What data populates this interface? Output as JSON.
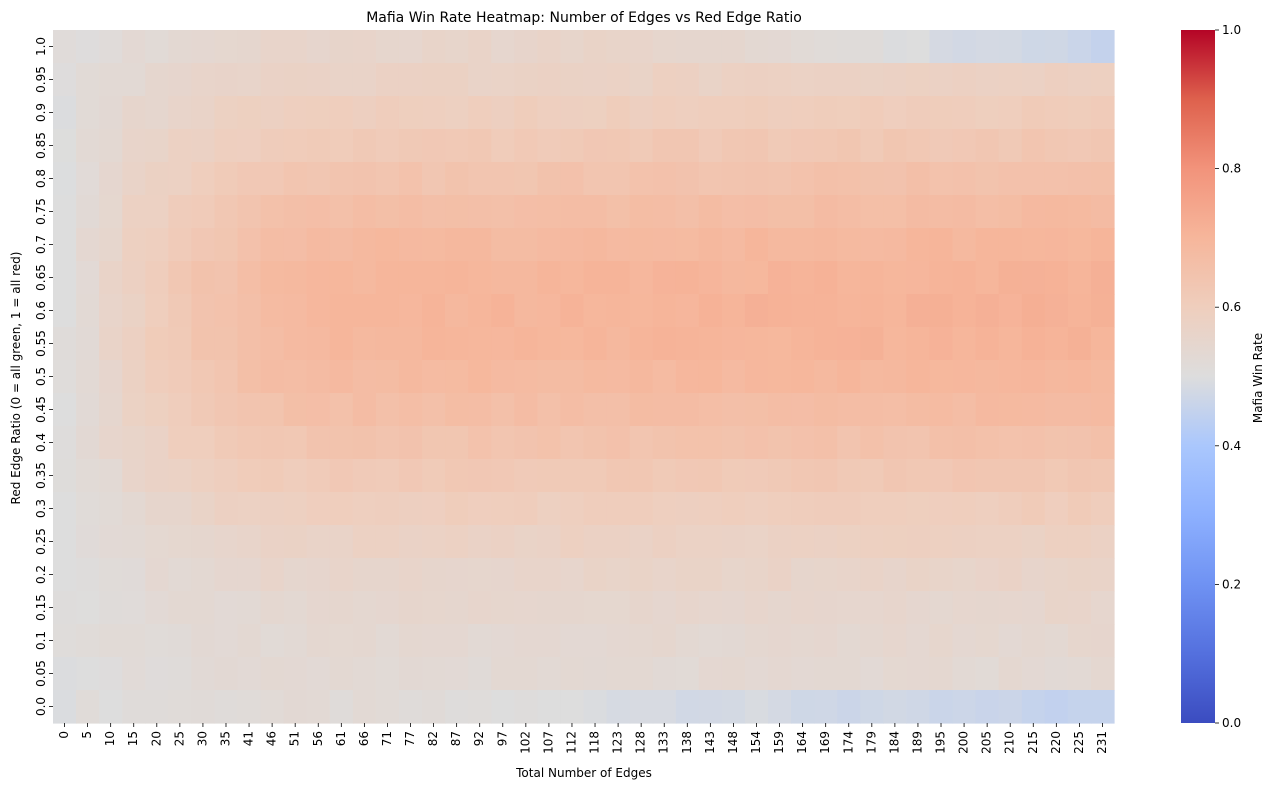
{
  "chart_data": {
    "type": "heatmap",
    "title": "Mafia Win Rate Heatmap: Number of Edges vs Red Edge Ratio",
    "xlabel": "Total Number of Edges",
    "ylabel": "Red Edge Ratio (0 = all green, 1 = all red)",
    "x_tick_labels": [
      "0",
      "5",
      "10",
      "15",
      "20",
      "25",
      "30",
      "35",
      "41",
      "46",
      "51",
      "56",
      "61",
      "66",
      "71",
      "77",
      "82",
      "87",
      "92",
      "97",
      "102",
      "107",
      "112",
      "118",
      "123",
      "128",
      "133",
      "138",
      "143",
      "148",
      "154",
      "159",
      "164",
      "169",
      "174",
      "179",
      "184",
      "189",
      "195",
      "200",
      "205",
      "210",
      "215",
      "220",
      "225",
      "231"
    ],
    "y_tick_labels": [
      "1.0",
      "0.95",
      "0.9",
      "0.85",
      "0.8",
      "0.75",
      "0.7",
      "0.65",
      "0.6",
      "0.55",
      "0.5",
      "0.45",
      "0.4",
      "0.35",
      "0.3",
      "0.25",
      "0.2",
      "0.15",
      "0.1",
      "0.05",
      "0.0"
    ],
    "x_count": 46,
    "y_values": [
      1.0,
      0.95,
      0.9,
      0.85,
      0.8,
      0.75,
      0.7,
      0.65,
      0.6,
      0.55,
      0.5,
      0.45,
      0.4,
      0.35,
      0.3,
      0.25,
      0.2,
      0.15,
      0.1,
      0.05,
      0.0
    ],
    "value_model": "approx win rate; rows ordered top (1.0) to bottom (0.0)",
    "colorbar": {
      "label": "Mafia Win Rate",
      "range": [
        0.0,
        1.0
      ],
      "ticks": [
        "0.0",
        "0.2",
        "0.4",
        "0.6",
        "0.8",
        "1.0"
      ],
      "colormap": "coolwarm"
    },
    "grid": false
  }
}
